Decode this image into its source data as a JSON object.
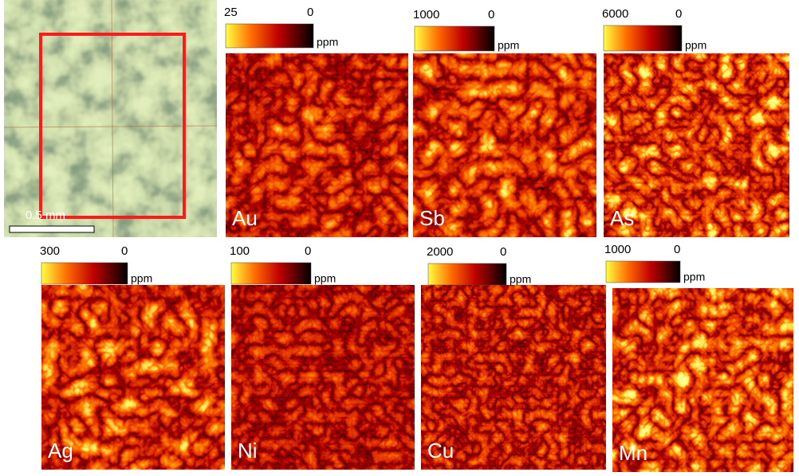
{
  "photo": {
    "scale_bar": "0.5 mm"
  },
  "panels": [
    {
      "element": "Au",
      "max": 25,
      "min": 0,
      "unit": "ppm"
    },
    {
      "element": "Sb",
      "max": 1000,
      "min": 0,
      "unit": "ppm"
    },
    {
      "element": "As",
      "max": 6000,
      "min": 0,
      "unit": "ppm"
    },
    {
      "element": "Ag",
      "max": 300,
      "min": 0,
      "unit": "ppm"
    },
    {
      "element": "Ni",
      "max": 100,
      "min": 0,
      "unit": "ppm"
    },
    {
      "element": "Cu",
      "max": 2000,
      "min": 0,
      "unit": "ppm"
    },
    {
      "element": "Mn",
      "max": 1000,
      "min": 0,
      "unit": "ppm"
    }
  ]
}
